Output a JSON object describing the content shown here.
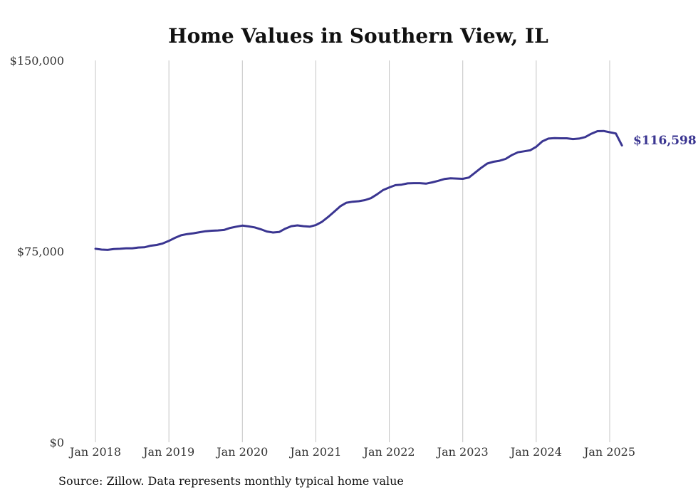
{
  "source_note": "Source: Zillow. Data represents monthly typical home value",
  "colors": {
    "line": "#3a3591",
    "grid": "#c4c4c4",
    "text": "#333333"
  },
  "chart_data": {
    "type": "line",
    "title": "Home Values in Southern View, IL",
    "xlabel": "",
    "ylabel": "",
    "ylim": [
      0,
      150000
    ],
    "y_ticks": [
      {
        "value": 0,
        "label": "$0"
      },
      {
        "value": 75000,
        "label": "$75,000"
      },
      {
        "value": 150000,
        "label": "$150,000"
      }
    ],
    "x_ticks": [
      {
        "value": "2018-01",
        "label": "Jan 2018"
      },
      {
        "value": "2019-01",
        "label": "Jan 2019"
      },
      {
        "value": "2020-01",
        "label": "Jan 2020"
      },
      {
        "value": "2021-01",
        "label": "Jan 2021"
      },
      {
        "value": "2022-01",
        "label": "Jan 2022"
      },
      {
        "value": "2023-01",
        "label": "Jan 2023"
      },
      {
        "value": "2024-01",
        "label": "Jan 2024"
      },
      {
        "value": "2025-01",
        "label": "Jan 2025"
      }
    ],
    "grid": {
      "vertical": true,
      "horizontal": false
    },
    "end_label": "$116,598",
    "series": [
      {
        "x": [
          "2018-01",
          "2018-02",
          "2018-03",
          "2018-04",
          "2018-05",
          "2018-06",
          "2018-07",
          "2018-08",
          "2018-09",
          "2018-10",
          "2018-11",
          "2018-12",
          "2019-01",
          "2019-02",
          "2019-03",
          "2019-04",
          "2019-05",
          "2019-06",
          "2019-07",
          "2019-08",
          "2019-09",
          "2019-10",
          "2019-11",
          "2019-12",
          "2020-01",
          "2020-02",
          "2020-03",
          "2020-04",
          "2020-05",
          "2020-06",
          "2020-07",
          "2020-08",
          "2020-09",
          "2020-10",
          "2020-11",
          "2020-12",
          "2021-01",
          "2021-02",
          "2021-03",
          "2021-04",
          "2021-05",
          "2021-06",
          "2021-07",
          "2021-08",
          "2021-09",
          "2021-10",
          "2021-11",
          "2021-12",
          "2022-01",
          "2022-02",
          "2022-03",
          "2022-04",
          "2022-05",
          "2022-06",
          "2022-07",
          "2022-08",
          "2022-09",
          "2022-10",
          "2022-11",
          "2022-12",
          "2023-01",
          "2023-02",
          "2023-03",
          "2023-04",
          "2023-05",
          "2023-06",
          "2023-07",
          "2023-08",
          "2023-09",
          "2023-10",
          "2023-11",
          "2023-12",
          "2024-01",
          "2024-02",
          "2024-03",
          "2024-04",
          "2024-05",
          "2024-06",
          "2024-07",
          "2024-08",
          "2024-09",
          "2024-10",
          "2024-11",
          "2024-12",
          "2025-01",
          "2025-02",
          "2025-03"
        ],
        "values": [
          76000,
          75700,
          75600,
          75900,
          76000,
          76200,
          76200,
          76500,
          76600,
          77200,
          77500,
          78100,
          79100,
          80300,
          81300,
          81800,
          82100,
          82500,
          82900,
          83100,
          83200,
          83400,
          84200,
          84700,
          85100,
          84800,
          84400,
          83700,
          82800,
          82400,
          82600,
          83900,
          84900,
          85200,
          84900,
          84700,
          85300,
          86600,
          88500,
          90600,
          92700,
          94100,
          94500,
          94700,
          95100,
          95900,
          97400,
          99100,
          100100,
          101000,
          101200,
          101700,
          101800,
          101800,
          101600,
          102100,
          102700,
          103400,
          103700,
          103600,
          103500,
          104000,
          105900,
          107800,
          109500,
          110200,
          110600,
          111300,
          112800,
          113900,
          114300,
          114700,
          116100,
          118200,
          119300,
          119500,
          119400,
          119400,
          119100,
          119300,
          119900,
          121200,
          122200,
          122300,
          121800,
          121300,
          116598
        ]
      }
    ]
  }
}
